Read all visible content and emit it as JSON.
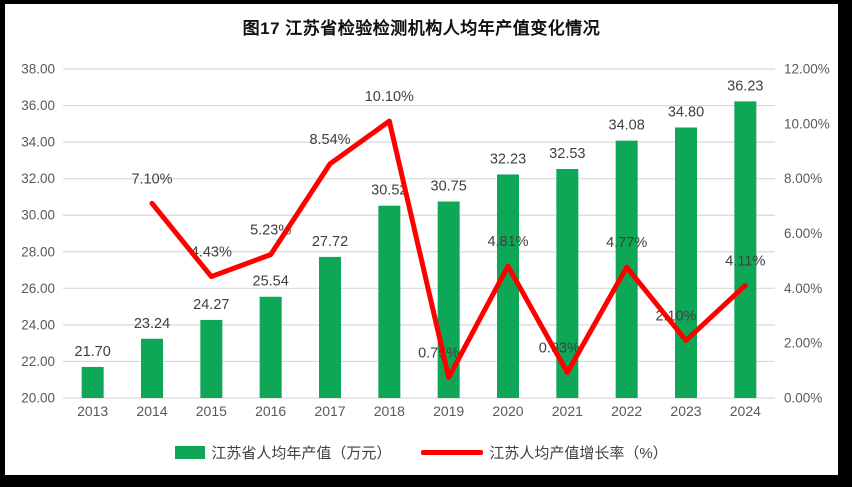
{
  "window": {
    "frame_color": "#000000",
    "background_color": "#ffffff"
  },
  "chart_data": {
    "type": "combo_bar_line",
    "title": "图17  江苏省检验检测机构人均年产值变化情况",
    "categories": [
      "2013",
      "2014",
      "2015",
      "2016",
      "2017",
      "2018",
      "2019",
      "2020",
      "2021",
      "2022",
      "2023",
      "2024"
    ],
    "series": [
      {
        "name": "江苏省人均年产值（万元）",
        "type": "bar",
        "axis": "left",
        "color": "#0ea657",
        "values": [
          21.7,
          23.24,
          24.27,
          25.54,
          27.72,
          30.52,
          30.75,
          32.23,
          32.53,
          34.08,
          34.8,
          36.23
        ],
        "labels": [
          "21.70",
          "23.24",
          "24.27",
          "25.54",
          "27.72",
          "30.52",
          "30.75",
          "32.23",
          "32.53",
          "34.08",
          "34.80",
          "36.23"
        ]
      },
      {
        "name": "江苏人均产值增长率（%）",
        "type": "line",
        "axis": "right",
        "color": "#ff0000",
        "values": [
          null,
          7.1,
          4.43,
          5.23,
          8.54,
          10.1,
          0.75,
          4.81,
          0.93,
          4.77,
          2.1,
          4.11
        ],
        "labels": [
          "",
          "7.10%",
          "4.43%",
          "5.23%",
          "8.54%",
          "10.10%",
          "0.75%",
          "4.81%",
          "0.93%",
          "4.77%",
          "2.10%",
          "4.11%"
        ]
      }
    ],
    "left_axis": {
      "min": 20,
      "max": 38,
      "step": 2,
      "ticks": [
        "38.00",
        "36.00",
        "34.00",
        "32.00",
        "30.00",
        "28.00",
        "26.00",
        "24.00",
        "22.00",
        "20.00"
      ]
    },
    "right_axis": {
      "min": 0,
      "max": 12,
      "step": 2,
      "suffix": "%",
      "ticks": [
        "12.00%",
        "10.00%",
        "8.00%",
        "6.00%",
        "4.00%",
        "2.00%",
        "0.00%"
      ]
    },
    "grid": true,
    "gridline_color": "#d9d9d9",
    "tick_label_color": "#595959",
    "data_label_color": "#404040",
    "legend_position": "bottom"
  }
}
